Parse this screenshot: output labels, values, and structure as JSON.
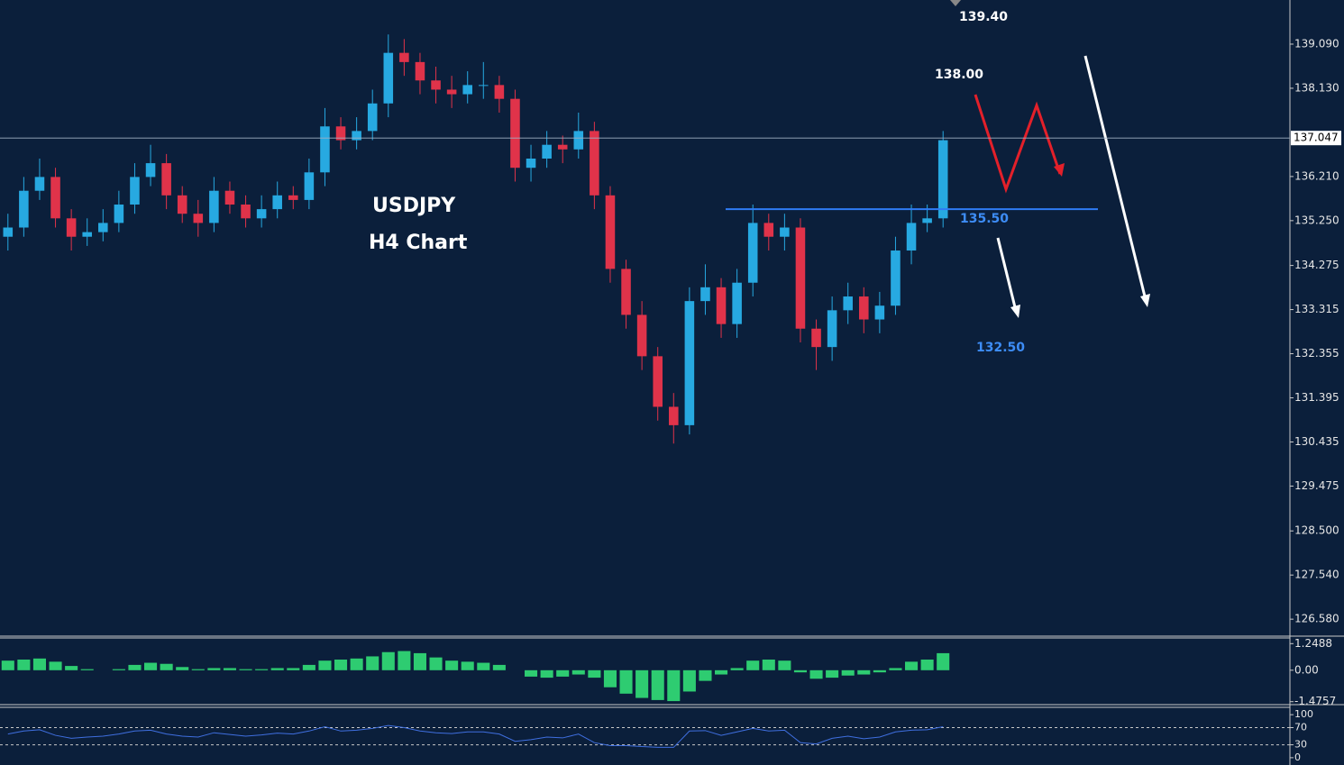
{
  "chart_data": [
    {
      "type": "candlestick",
      "annotations": [
        "USDJPY",
        "H4 Chart",
        "139.40",
        "138.00",
        "132.50"
      ],
      "level": {
        "value": 135.5,
        "label": "135.50"
      },
      "current_price": 137.047,
      "up_color": "#27a9e1",
      "down_color": "#e0334a",
      "ylim": [
        126.23,
        140.05
      ],
      "yticks": [
        {
          "value": 139.09,
          "label": "139.090"
        },
        {
          "value": 138.13,
          "label": "138.130"
        },
        {
          "value": 136.21,
          "label": "136.210"
        },
        {
          "value": 135.25,
          "label": "135.250"
        },
        134.275,
        133.315,
        132.355,
        131.395,
        130.435,
        129.475,
        {
          "value": 128.5,
          "label": "128.500"
        },
        {
          "value": 127.54,
          "label": "127.540"
        },
        {
          "value": 126.58,
          "label": "126.580"
        }
      ],
      "open": [
        134.9,
        135.1,
        135.9,
        136.2,
        135.3,
        134.9,
        135.0,
        135.2,
        135.6,
        136.2,
        136.5,
        135.8,
        135.4,
        135.2,
        135.9,
        135.6,
        135.3,
        135.5,
        135.8,
        135.7,
        136.3,
        137.3,
        137.0,
        137.2,
        137.8,
        138.9,
        138.7,
        138.3,
        138.1,
        138.0,
        138.2,
        138.2,
        137.9,
        136.4,
        136.6,
        136.9,
        136.8,
        137.2,
        135.8,
        134.2,
        133.2,
        132.3,
        131.2,
        130.8,
        133.5,
        133.8,
        133.0,
        133.9,
        135.2,
        134.9,
        135.1,
        132.9,
        132.5,
        133.3,
        133.6,
        133.1,
        133.4,
        134.6,
        135.2,
        135.3
      ],
      "high": [
        135.4,
        136.2,
        136.6,
        136.4,
        135.5,
        135.3,
        135.5,
        135.9,
        136.5,
        136.9,
        136.7,
        136.0,
        135.7,
        136.2,
        136.1,
        135.8,
        135.8,
        136.1,
        136.0,
        136.6,
        137.7,
        137.5,
        137.5,
        138.1,
        139.3,
        139.2,
        138.9,
        138.6,
        138.4,
        138.5,
        138.7,
        138.4,
        138.1,
        136.9,
        137.2,
        137.1,
        137.6,
        137.4,
        136.0,
        134.4,
        133.5,
        132.5,
        131.5,
        133.8,
        134.3,
        134.0,
        134.2,
        135.6,
        135.4,
        135.4,
        135.3,
        133.1,
        133.6,
        133.9,
        133.8,
        133.7,
        134.9,
        135.6,
        135.6,
        137.2
      ],
      "low": [
        134.6,
        134.9,
        135.7,
        135.1,
        134.6,
        134.7,
        134.8,
        135.0,
        135.4,
        136.0,
        135.5,
        135.2,
        134.9,
        135.0,
        135.4,
        135.1,
        135.1,
        135.3,
        135.5,
        135.5,
        136.0,
        136.8,
        136.8,
        137.0,
        137.5,
        138.4,
        138.0,
        137.8,
        137.7,
        137.8,
        137.9,
        137.6,
        136.1,
        136.1,
        136.4,
        136.5,
        136.6,
        135.5,
        133.9,
        132.9,
        132.0,
        130.9,
        130.4,
        130.6,
        133.2,
        132.7,
        132.7,
        133.6,
        134.6,
        134.6,
        132.6,
        132.0,
        132.2,
        133.0,
        132.8,
        132.8,
        133.2,
        134.3,
        135.0,
        135.1
      ],
      "close": [
        135.1,
        135.9,
        136.2,
        135.3,
        134.9,
        135.0,
        135.2,
        135.6,
        136.2,
        136.5,
        135.8,
        135.4,
        135.2,
        135.9,
        135.6,
        135.3,
        135.5,
        135.8,
        135.7,
        136.3,
        137.3,
        137.0,
        137.2,
        137.8,
        138.9,
        138.7,
        138.3,
        138.1,
        138.0,
        138.2,
        138.2,
        137.9,
        136.4,
        136.6,
        136.9,
        136.8,
        137.2,
        135.8,
        134.2,
        133.2,
        132.3,
        131.2,
        130.8,
        133.5,
        133.8,
        133.0,
        133.9,
        135.2,
        134.9,
        135.1,
        132.9,
        132.5,
        133.3,
        133.6,
        133.1,
        133.4,
        134.6,
        135.2,
        135.3,
        137.0
      ]
    },
    {
      "type": "bar",
      "color": "#2ecc71",
      "ylim": [
        -1.7,
        1.6
      ],
      "yticks": [
        1.2488,
        {
          "value": 0,
          "label": "0.00"
        },
        -1.4757
      ],
      "values": [
        0.45,
        0.5,
        0.55,
        0.4,
        0.2,
        0.05,
        0.0,
        0.05,
        0.25,
        0.35,
        0.3,
        0.15,
        0.05,
        0.1,
        0.1,
        0.05,
        0.05,
        0.1,
        0.1,
        0.25,
        0.45,
        0.5,
        0.55,
        0.65,
        0.85,
        0.9,
        0.8,
        0.6,
        0.45,
        0.4,
        0.35,
        0.25,
        0.0,
        -0.3,
        -0.35,
        -0.3,
        -0.2,
        -0.35,
        -0.8,
        -1.1,
        -1.3,
        -1.4,
        -1.45,
        -1.0,
        -0.5,
        -0.2,
        0.1,
        0.45,
        0.5,
        0.45,
        -0.1,
        -0.4,
        -0.35,
        -0.25,
        -0.2,
        -0.1,
        0.1,
        0.4,
        0.5,
        0.8
      ]
    },
    {
      "type": "line",
      "color": "#3f6fe0",
      "ylim": [
        -17,
        115
      ],
      "yticks": [
        100,
        70,
        30,
        0
      ],
      "levels": [
        70,
        30
      ],
      "values": [
        55,
        62,
        65,
        52,
        45,
        48,
        50,
        55,
        62,
        64,
        55,
        50,
        48,
        58,
        54,
        50,
        53,
        57,
        55,
        62,
        72,
        62,
        64,
        68,
        75,
        70,
        62,
        58,
        56,
        60,
        60,
        55,
        38,
        42,
        48,
        46,
        55,
        35,
        28,
        28,
        26,
        24,
        24,
        62,
        63,
        52,
        60,
        68,
        62,
        64,
        35,
        32,
        45,
        50,
        44,
        48,
        60,
        64,
        65,
        72
      ]
    }
  ]
}
